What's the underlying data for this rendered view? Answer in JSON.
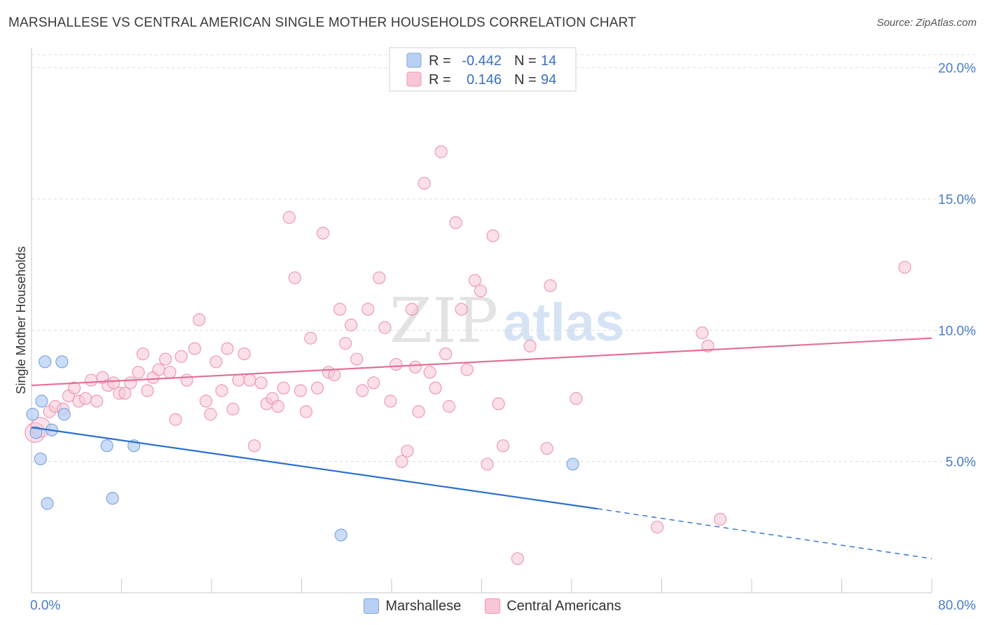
{
  "title": "MARSHALLESE VS CENTRAL AMERICAN SINGLE MOTHER HOUSEHOLDS CORRELATION CHART",
  "source": "Source: ZipAtlas.com",
  "watermark": {
    "zip": "ZIP",
    "atlas": "atlas"
  },
  "colors": {
    "blue_fill": "#b8d0f5",
    "blue_stroke": "#7fa6dd",
    "blue_line": "#2a6fce",
    "pink_fill": "#f8c6d6",
    "pink_stroke": "#ee9ab5",
    "pink_line": "#e36f98",
    "tick_text": "#4a7cc7",
    "grid": "#dcdcdc"
  },
  "legend": {
    "rows": [
      {
        "r_label": "R =",
        "r_value": "-0.442",
        "n_label": "N =",
        "n_value": "14"
      },
      {
        "r_label": "R =",
        "r_value": "0.146",
        "n_label": "N =",
        "n_value": "94"
      }
    ]
  },
  "bottom_legend": [
    "Marshallese",
    "Central Americans"
  ],
  "chart_data": {
    "type": "scatter",
    "ylabel": "Single Mother Households",
    "xlim": [
      0,
      80
    ],
    "ylim": [
      0,
      20.5
    ],
    "x_tick_labels": [
      "0.0%",
      "80.0%"
    ],
    "y_ticks": [
      5,
      10,
      15,
      20
    ],
    "y_tick_labels": [
      "5.0%",
      "10.0%",
      "15.0%",
      "20.0%"
    ],
    "grid": "horizontal dashed",
    "legend_placement": "top-center",
    "series": [
      {
        "name": "Marshallese",
        "r": -0.442,
        "n": 14,
        "trend": {
          "x0": 0,
          "y0": 6.3,
          "x1": 50.3,
          "y1": 3.2,
          "dashed_to_x": 80,
          "dashed_to_y": 1.3
        },
        "points": [
          [
            0.1,
            6.8
          ],
          [
            0.4,
            6.1
          ],
          [
            0.8,
            5.1
          ],
          [
            0.9,
            7.3
          ],
          [
            1.2,
            8.8
          ],
          [
            1.4,
            3.4
          ],
          [
            1.8,
            6.2
          ],
          [
            2.7,
            8.8
          ],
          [
            2.9,
            6.8
          ],
          [
            6.7,
            5.6
          ],
          [
            7.2,
            3.6
          ],
          [
            9.1,
            5.6
          ],
          [
            27.5,
            2.2
          ],
          [
            48.1,
            4.9
          ]
        ]
      },
      {
        "name": "Central Americans",
        "r": 0.146,
        "n": 94,
        "trend": {
          "x0": 0,
          "y0": 7.9,
          "x1": 80,
          "y1": 9.7
        },
        "points": [
          [
            0.3,
            6.1
          ],
          [
            0.8,
            6.3
          ],
          [
            1.6,
            6.9
          ],
          [
            2.1,
            7.1
          ],
          [
            2.8,
            7.0
          ],
          [
            3.3,
            7.5
          ],
          [
            3.8,
            7.8
          ],
          [
            4.2,
            7.3
          ],
          [
            4.8,
            7.4
          ],
          [
            5.3,
            8.1
          ],
          [
            5.8,
            7.3
          ],
          [
            6.3,
            8.2
          ],
          [
            6.8,
            7.9
          ],
          [
            7.3,
            8.0
          ],
          [
            7.8,
            7.6
          ],
          [
            8.3,
            7.6
          ],
          [
            8.8,
            8.0
          ],
          [
            9.5,
            8.4
          ],
          [
            9.9,
            9.1
          ],
          [
            10.3,
            7.7
          ],
          [
            10.8,
            8.2
          ],
          [
            11.3,
            8.5
          ],
          [
            11.9,
            8.9
          ],
          [
            12.3,
            8.4
          ],
          [
            12.8,
            6.6
          ],
          [
            13.3,
            9.0
          ],
          [
            13.8,
            8.1
          ],
          [
            14.5,
            9.3
          ],
          [
            14.9,
            10.4
          ],
          [
            15.5,
            7.3
          ],
          [
            15.9,
            6.8
          ],
          [
            16.4,
            8.8
          ],
          [
            16.9,
            7.7
          ],
          [
            17.4,
            9.3
          ],
          [
            17.9,
            7.0
          ],
          [
            18.4,
            8.1
          ],
          [
            18.9,
            9.1
          ],
          [
            19.4,
            8.1
          ],
          [
            19.8,
            5.6
          ],
          [
            20.4,
            8.0
          ],
          [
            20.9,
            7.2
          ],
          [
            21.4,
            7.4
          ],
          [
            21.9,
            7.1
          ],
          [
            22.4,
            7.8
          ],
          [
            22.9,
            14.3
          ],
          [
            23.4,
            12.0
          ],
          [
            23.9,
            7.7
          ],
          [
            24.4,
            6.9
          ],
          [
            24.8,
            9.7
          ],
          [
            25.4,
            7.8
          ],
          [
            25.9,
            13.7
          ],
          [
            26.4,
            8.4
          ],
          [
            26.9,
            8.3
          ],
          [
            27.4,
            10.8
          ],
          [
            27.9,
            9.5
          ],
          [
            28.4,
            10.2
          ],
          [
            28.9,
            8.9
          ],
          [
            29.4,
            7.7
          ],
          [
            29.9,
            10.8
          ],
          [
            30.4,
            8.0
          ],
          [
            30.9,
            12.0
          ],
          [
            31.4,
            10.1
          ],
          [
            31.9,
            7.3
          ],
          [
            32.4,
            8.7
          ],
          [
            32.9,
            5.0
          ],
          [
            33.4,
            5.4
          ],
          [
            33.8,
            10.8
          ],
          [
            34.1,
            8.6
          ],
          [
            34.4,
            6.9
          ],
          [
            34.9,
            15.6
          ],
          [
            35.4,
            8.4
          ],
          [
            35.9,
            7.8
          ],
          [
            36.4,
            16.8
          ],
          [
            36.8,
            9.1
          ],
          [
            37.1,
            7.1
          ],
          [
            37.7,
            14.1
          ],
          [
            38.2,
            10.8
          ],
          [
            38.7,
            8.5
          ],
          [
            39.4,
            11.9
          ],
          [
            39.9,
            11.5
          ],
          [
            40.5,
            4.9
          ],
          [
            41.0,
            13.6
          ],
          [
            41.5,
            7.2
          ],
          [
            41.9,
            5.6
          ],
          [
            43.2,
            1.3
          ],
          [
            44.3,
            9.4
          ],
          [
            45.8,
            5.5
          ],
          [
            46.1,
            11.7
          ],
          [
            48.4,
            7.4
          ],
          [
            55.6,
            2.5
          ],
          [
            59.6,
            9.9
          ],
          [
            60.1,
            9.4
          ],
          [
            61.2,
            2.8
          ],
          [
            77.6,
            12.4
          ]
        ]
      }
    ]
  }
}
